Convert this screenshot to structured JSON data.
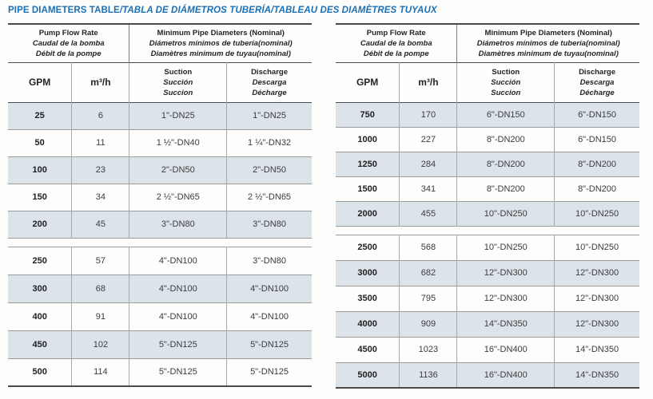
{
  "title": {
    "main": "PIPE DIAMETERS TABLE",
    "translations": "/TABLA DE DIÁMETROS TUBERÍA/TABLEAU DES DIAMÈTRES TUYAUX"
  },
  "header": {
    "flow_group": [
      "Pump Flow Rate",
      "Caudal de la bomba",
      "Débit de la pompe"
    ],
    "diameter_group": [
      "Minimum Pipe Diameters (Nominal)",
      "Diámetros mínimos de tubería(nominal)",
      "Diamètres minimum de tuyau(nominal)"
    ],
    "col_gpm": "GPM",
    "col_m3h": "m³/h",
    "suction": [
      "Suction",
      "Succión",
      "Succion"
    ],
    "discharge": [
      "Discharge",
      "Descarga",
      "Décharge"
    ]
  },
  "tables": [
    {
      "name": "low-flow",
      "groups": [
        {
          "shaded_first": true,
          "rows": [
            [
              "25",
              "6",
              "1\"-DN25",
              "1\"-DN25"
            ],
            [
              "50",
              "11",
              "1 ½\"-DN40",
              "1 ¼\"-DN32"
            ],
            [
              "100",
              "23",
              "2\"-DN50",
              "2\"-DN50"
            ],
            [
              "150",
              "34",
              "2 ½\"-DN65",
              "2 ½\"-DN65"
            ],
            [
              "200",
              "45",
              "3\"-DN80",
              "3\"-DN80"
            ]
          ]
        },
        {
          "shaded_first": false,
          "rows": [
            [
              "250",
              "57",
              "4\"-DN100",
              "3\"-DN80"
            ],
            [
              "300",
              "68",
              "4\"-DN100",
              "4\"-DN100"
            ],
            [
              "400",
              "91",
              "4\"-DN100",
              "4\"-DN100"
            ],
            [
              "450",
              "102",
              "5\"-DN125",
              "5\"-DN125"
            ],
            [
              "500",
              "114",
              "5\"-DN125",
              "5\"-DN125"
            ]
          ]
        }
      ]
    },
    {
      "name": "high-flow",
      "groups": [
        {
          "shaded_first": true,
          "rows": [
            [
              "750",
              "170",
              "6\"-DN150",
              "6\"-DN150"
            ],
            [
              "1000",
              "227",
              "8\"-DN200",
              "6\"-DN150"
            ],
            [
              "1250",
              "284",
              "8\"-DN200",
              "8\"-DN200"
            ],
            [
              "1500",
              "341",
              "8\"-DN200",
              "8\"-DN200"
            ],
            [
              "2000",
              "455",
              "10\"-DN250",
              "10\"-DN250"
            ]
          ]
        },
        {
          "shaded_first": false,
          "rows": [
            [
              "2500",
              "568",
              "10\"-DN250",
              "10\"-DN250"
            ],
            [
              "3000",
              "682",
              "12\"-DN300",
              "12\"-DN300"
            ],
            [
              "3500",
              "795",
              "12\"-DN300",
              "12\"-DN300"
            ],
            [
              "4000",
              "909",
              "14\"-DN350",
              "12\"-DN300"
            ],
            [
              "4500",
              "1023",
              "16\"-DN400",
              "14\"-DN350"
            ],
            [
              "5000",
              "1136",
              "16\"-DN400",
              "14\"-DN350"
            ]
          ]
        }
      ]
    }
  ],
  "colors": {
    "title": "#1b6fb5",
    "row-shade": "#dde4e9",
    "rule-dark": "#4a4a4a",
    "rule-light": "#9b9b9b",
    "header-text": "#232329",
    "data-text": "#3b3b40"
  }
}
